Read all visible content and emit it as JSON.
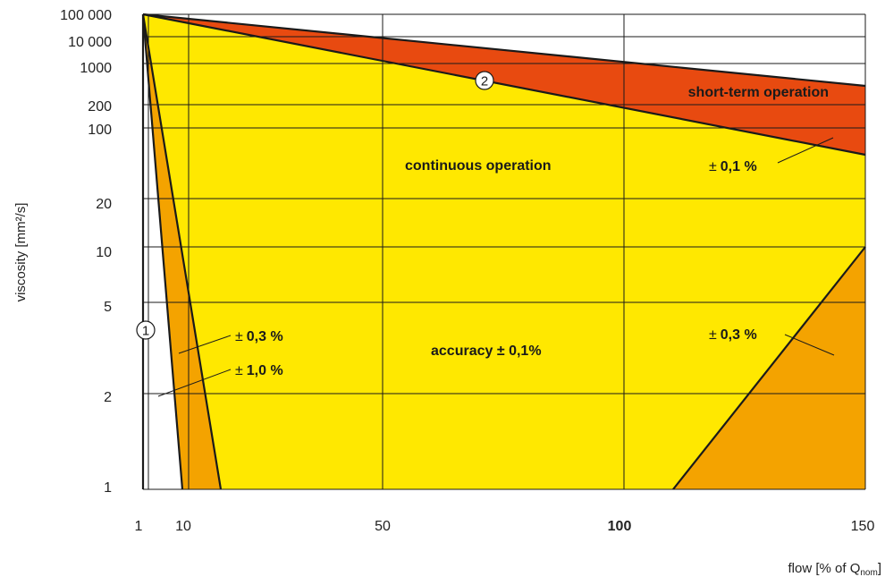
{
  "chart_data": {
    "type": "area",
    "title": "",
    "xlabel": "flow [% of Q",
    "xlabel_sub": "nom",
    "xlabel_close": "]",
    "ylabel": "viscosity [mm²/s]",
    "x_ticks": [
      "1",
      "10",
      "50",
      "100",
      "150"
    ],
    "x_tick_bold": [
      "100"
    ],
    "y_ticks": [
      "1",
      "2",
      "5",
      "10",
      "20",
      "100",
      "200",
      "1000",
      "10000",
      "100000"
    ],
    "y_tick_labels": [
      "1",
      "2",
      "5",
      "10",
      "20",
      "100",
      "200",
      "1000",
      "10 000",
      "100 000"
    ],
    "xlim": [
      1,
      150
    ],
    "grid": true,
    "regions": [
      {
        "name": "continuous operation",
        "color": "#FFE800"
      },
      {
        "name": "short-term operation",
        "color": "#E84A10"
      },
      {
        "name": "accuracy ± 0,3 %",
        "color": "#F4A300"
      },
      {
        "name": "accuracy ± 1,0 %",
        "color": "#FFFFFF"
      }
    ],
    "boundaries": {
      "continuous_upper": [
        [
          1,
          100000
        ],
        [
          150,
          50
        ]
      ],
      "short_term_upper": [
        [
          1,
          100000
        ],
        [
          150,
          300
        ]
      ],
      "low_flow_0_3": [
        [
          1,
          100000
        ],
        [
          16,
          1
        ]
      ],
      "low_flow_1_0": [
        [
          1,
          100000
        ],
        [
          9,
          1
        ]
      ],
      "high_flow_0_3": [
        [
          111,
          1
        ],
        [
          150,
          10
        ]
      ]
    },
    "annotations": {
      "short_term": "short-term operation",
      "continuous": "continuous operation",
      "accuracy_prefix": "accuracy",
      "accuracy_value": "± 0,1%",
      "pm_01_sign": "±",
      "pm_01_value": "0,1 %",
      "pm_03_left_sign": "±",
      "pm_03_left_value": "0,3 %",
      "pm_10_sign": "±",
      "pm_10_value": "1,0 %",
      "pm_03_right_sign": "±",
      "pm_03_right_value": "0,3 %",
      "marker_1": "1",
      "marker_2": "2"
    }
  }
}
